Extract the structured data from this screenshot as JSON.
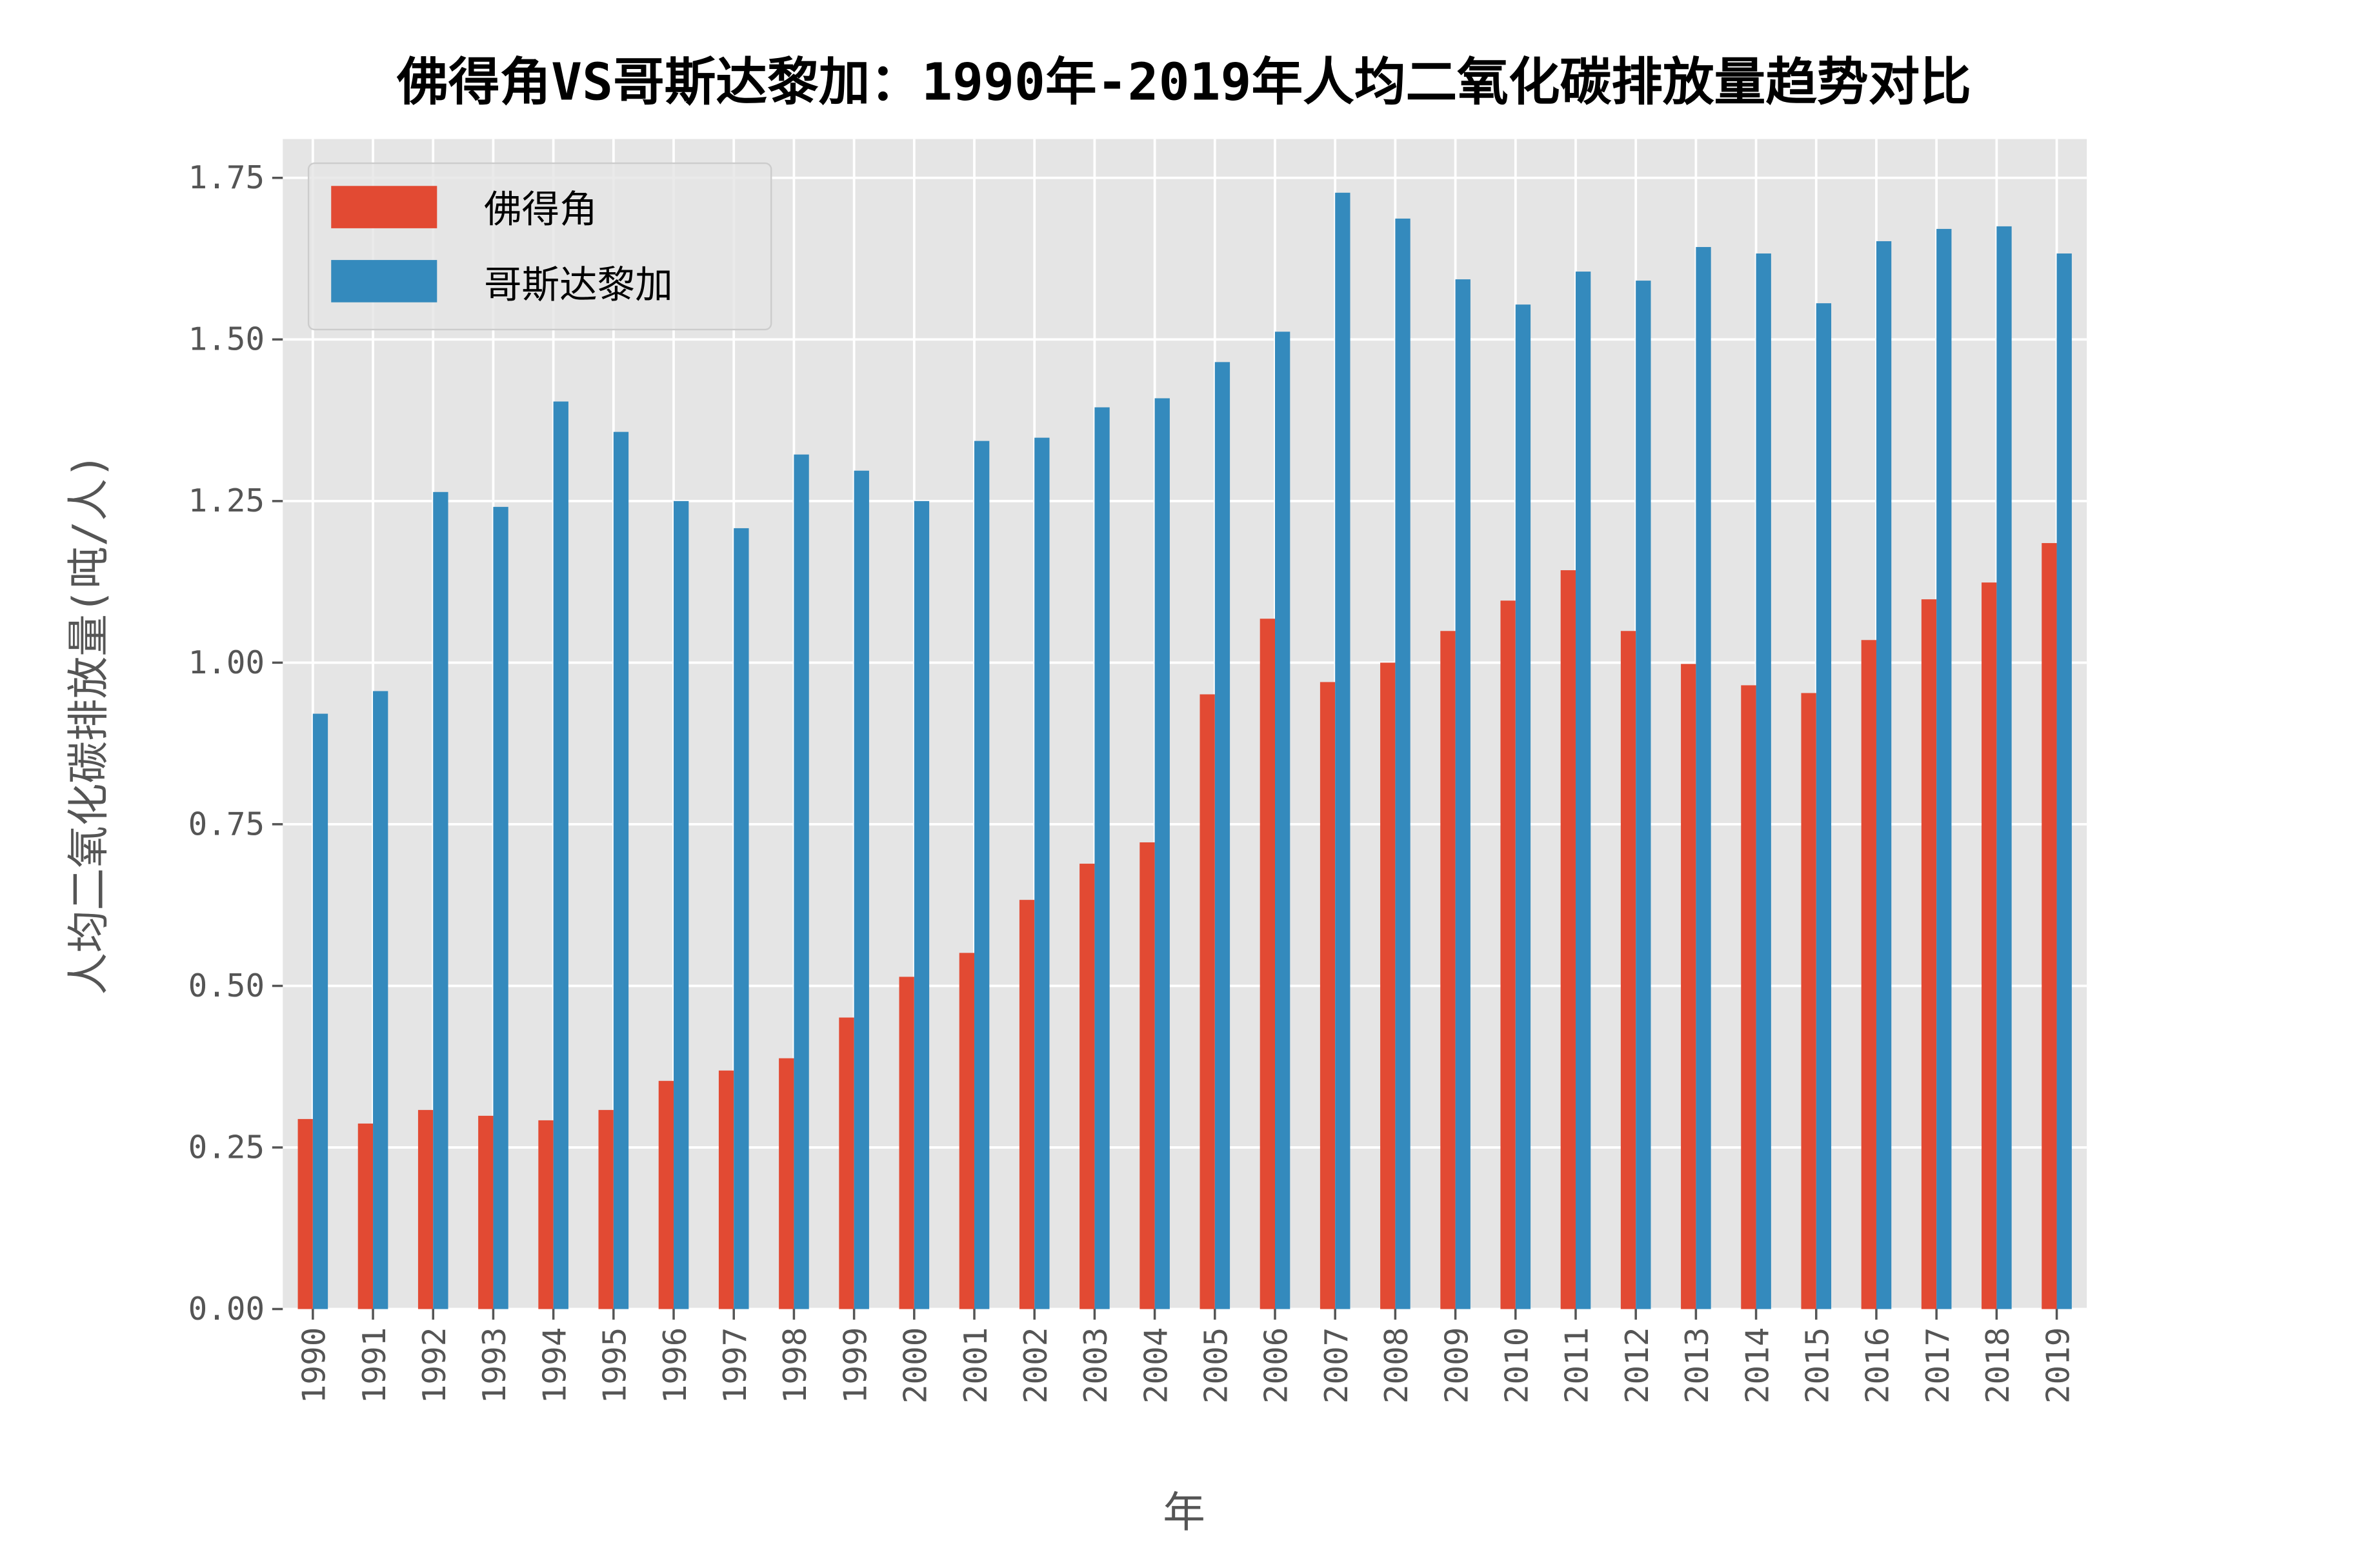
{
  "chart_data": {
    "type": "bar",
    "title": "佛得角VS哥斯达黎加：1990年-2019年人均二氧化碳排放量趋势对比",
    "xlabel": "年",
    "ylabel": "人均二氧化碳排放量(吨/人)",
    "ylim": [
      0,
      1.81
    ],
    "yticks": [
      "0.00",
      "0.25",
      "0.50",
      "0.75",
      "1.00",
      "1.25",
      "1.50",
      "1.75"
    ],
    "grid": true,
    "legend_placement": "upper-left",
    "categories": [
      "1990",
      "1991",
      "1992",
      "1993",
      "1994",
      "1995",
      "1996",
      "1997",
      "1998",
      "1999",
      "2000",
      "2001",
      "2002",
      "2003",
      "2004",
      "2005",
      "2006",
      "2007",
      "2008",
      "2009",
      "2010",
      "2011",
      "2012",
      "2013",
      "2014",
      "2015",
      "2016",
      "2017",
      "2018",
      "2019"
    ],
    "series": [
      {
        "name": "佛得角",
        "color": "#E24A33",
        "values": [
          0.294,
          0.287,
          0.308,
          0.299,
          0.292,
          0.308,
          0.353,
          0.369,
          0.388,
          0.451,
          0.514,
          0.551,
          0.633,
          0.689,
          0.722,
          0.951,
          1.068,
          0.97,
          1.0,
          1.049,
          1.096,
          1.143,
          1.049,
          0.998,
          0.965,
          0.953,
          1.035,
          1.098,
          1.124,
          1.185
        ]
      },
      {
        "name": "哥斯达黎加",
        "color": "#348ABD",
        "values": [
          0.921,
          0.956,
          1.264,
          1.241,
          1.404,
          1.357,
          1.25,
          1.208,
          1.322,
          1.297,
          1.25,
          1.343,
          1.348,
          1.395,
          1.409,
          1.465,
          1.512,
          1.727,
          1.687,
          1.593,
          1.554,
          1.605,
          1.591,
          1.643,
          1.633,
          1.556,
          1.652,
          1.671,
          1.675,
          1.633
        ]
      }
    ]
  }
}
